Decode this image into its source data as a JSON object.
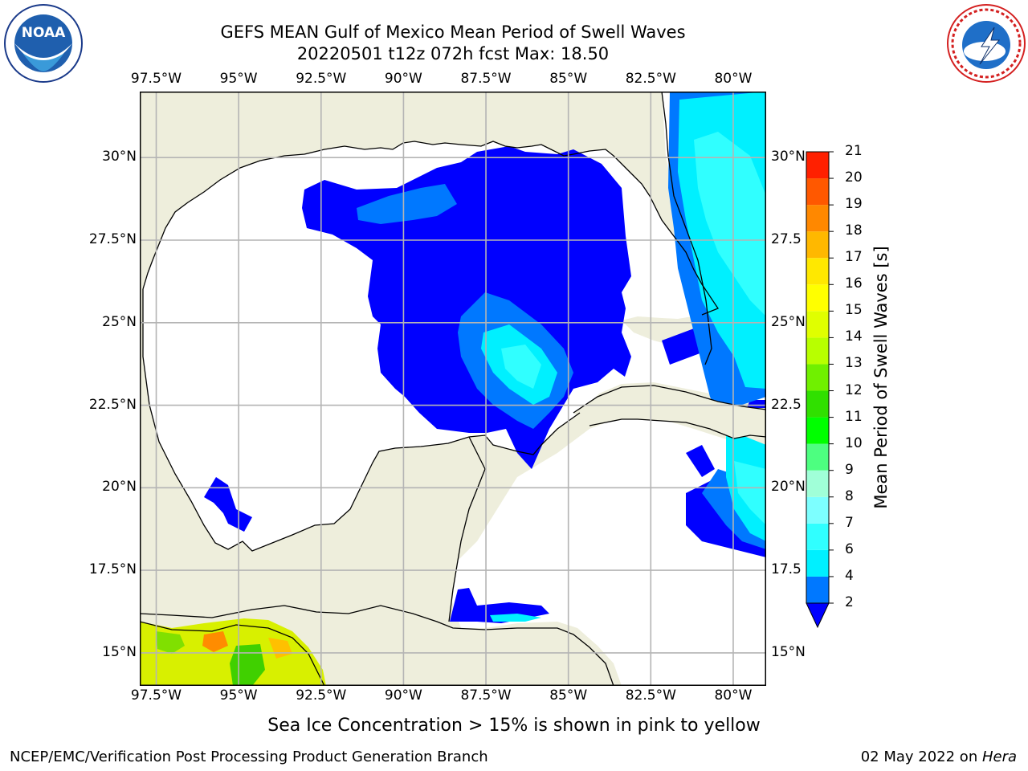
{
  "header": {
    "title_line1": "GEFS MEAN Gulf of Mexico Mean Period of Swell Waves",
    "title_line2": "20220501 t12z 072h fcst   Max: 18.50"
  },
  "logos": {
    "left": {
      "icon": "noaa-logo",
      "text": "NOAA"
    },
    "right": {
      "icon": "nws-logo",
      "text": "NATIONAL WEATHER SERVICE"
    }
  },
  "map": {
    "region": "Gulf of Mexico",
    "lon_labels": [
      "97.5°W",
      "95°W",
      "92.5°W",
      "90°W",
      "87.5°W",
      "85°W",
      "82.5°W",
      "80°W"
    ],
    "lat_labels_left": [
      "30°N",
      "27.5°N",
      "25°N",
      "22.5°N",
      "20°N",
      "17.5°N",
      "15°N"
    ],
    "lat_labels_right": [
      "30°N",
      "27.5",
      "25°N",
      "22.5",
      "20°N",
      "17.5",
      "15°N"
    ],
    "lon_range": [
      -98,
      -79
    ],
    "lat_range": [
      14,
      32
    ],
    "colors": {
      "land": "#eeeedc",
      "ocean": "#ffffff",
      "grid": "#b4b4b4",
      "coast": "#000000"
    }
  },
  "colorbar": {
    "title": "Mean Period of Swell Waves [s]",
    "tick_labels": [
      "2",
      "4",
      "6",
      "7",
      "8",
      "9",
      "10",
      "11",
      "12",
      "13",
      "14",
      "15",
      "16",
      "17",
      "18",
      "19",
      "20",
      "21"
    ],
    "colors": [
      "#0000ff",
      "#0078ff",
      "#00f0ff",
      "#30ffff",
      "#7dffff",
      "#a0ffd8",
      "#4dff80",
      "#00ff00",
      "#30e000",
      "#70f000",
      "#b8ff00",
      "#e0ff00",
      "#ffff00",
      "#ffe800",
      "#ffb800",
      "#ff8800",
      "#ff5800",
      "#ff2000",
      "#ff0000"
    ]
  },
  "footer": {
    "subtitle": "Sea Ice Concentration > 15% is shown in pink to yellow",
    "left": "NCEP/EMC/Verification Post Processing Product Generation Branch",
    "right_date": "02 May 2022 on ",
    "right_host": "Hera"
  }
}
